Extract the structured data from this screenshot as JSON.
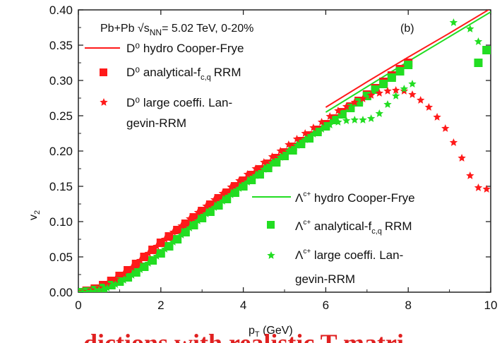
{
  "chart_data": {
    "type": "scatter",
    "header": "Pb+Pb √s",
    "header_sub": "NN",
    "header_rest": "= 5.02 TeV, 0-20%",
    "panel_label": "(b)",
    "xlabel": "p",
    "xlabel_sub": "T",
    "xlabel_rest": " (GeV)",
    "ylabel": "v",
    "ylabel_sub": "2",
    "xlim": [
      0,
      10
    ],
    "ylim": [
      0,
      0.4
    ],
    "x_ticks": [
      "0",
      "2",
      "4",
      "6",
      "8",
      "10"
    ],
    "y_ticks": [
      "0.00",
      "0.05",
      "0.10",
      "0.15",
      "0.20",
      "0.25",
      "0.30",
      "0.35",
      "0.40"
    ],
    "bottom_caption": "dictions with realistic T matri",
    "colors": {
      "D": "#ff1a1a",
      "Lc": "#22dd22"
    },
    "legend_D": [
      {
        "marker": "line",
        "label_lines": [
          "D⁰ hydro Cooper-Frye"
        ]
      },
      {
        "marker": "square",
        "label_lines": [
          "D⁰ analytical-f",
          "RRM"
        ],
        "label_sub": "c,q"
      },
      {
        "marker": "star",
        "label_lines": [
          "D⁰ large coeffi. Lan-",
          "gevin-RRM"
        ]
      }
    ],
    "legend_Lc": [
      {
        "marker": "line",
        "label_lines": [
          "Λ",
          " hydro Cooper-Frye"
        ],
        "label_sup": "c+"
      },
      {
        "marker": "square",
        "label_lines": [
          "Λ",
          " analytical-f",
          "RRM"
        ],
        "label_sup": "c+",
        "label_sub": "c,q"
      },
      {
        "marker": "star",
        "label_lines": [
          "Λ",
          " large coeffi. Lan-",
          "gevin-RRM"
        ],
        "label_sup": "c+"
      }
    ],
    "series": [
      {
        "name": "D⁰ hydro Cooper-Frye",
        "kind": "line",
        "color": "#ff1a1a",
        "x": [
          6.0,
          7.0,
          8.0,
          9.0,
          10.0
        ],
        "y": [
          0.262,
          0.298,
          0.333,
          0.367,
          0.402
        ]
      },
      {
        "name": "Λc+ hydro Cooper-Frye",
        "kind": "line",
        "color": "#22dd22",
        "x": [
          6.0,
          7.0,
          8.0,
          9.0,
          10.0
        ],
        "y": [
          0.255,
          0.291,
          0.327,
          0.362,
          0.397
        ]
      },
      {
        "name": "D⁰ analytical-fc,q RRM",
        "kind": "square",
        "color": "#ff1a1a",
        "x": [
          0.0,
          0.2,
          0.4,
          0.6,
          0.8,
          1.0,
          1.2,
          1.4,
          1.6,
          1.8,
          2.0,
          2.2,
          2.4,
          2.6,
          2.8,
          3.0,
          3.2,
          3.4,
          3.6,
          3.8,
          4.0,
          4.2,
          4.4,
          4.6,
          4.8,
          5.0,
          5.2,
          5.4,
          5.6,
          5.8,
          6.0,
          6.2,
          6.4,
          6.6,
          6.8,
          7.0,
          7.2,
          7.4,
          7.6,
          7.8,
          8.0
        ],
        "y": [
          0.0,
          0.002,
          0.005,
          0.01,
          0.016,
          0.023,
          0.031,
          0.04,
          0.05,
          0.06,
          0.07,
          0.079,
          0.088,
          0.097,
          0.106,
          0.115,
          0.124,
          0.133,
          0.141,
          0.15,
          0.158,
          0.166,
          0.174,
          0.182,
          0.19,
          0.198,
          0.206,
          0.214,
          0.222,
          0.23,
          0.238,
          0.246,
          0.255,
          0.263,
          0.271,
          0.28,
          0.289,
          0.298,
          0.307,
          0.316,
          0.325
        ]
      },
      {
        "name": "Λc+ analytical-fc,q RRM",
        "kind": "square",
        "color": "#22dd22",
        "x": [
          0.0,
          0.2,
          0.4,
          0.6,
          0.8,
          1.0,
          1.2,
          1.4,
          1.6,
          1.8,
          2.0,
          2.2,
          2.4,
          2.6,
          2.8,
          3.0,
          3.2,
          3.4,
          3.6,
          3.8,
          4.0,
          4.2,
          4.4,
          4.6,
          4.8,
          5.0,
          5.2,
          5.4,
          5.6,
          5.8,
          6.0,
          6.2,
          6.4,
          6.6,
          6.8,
          7.0,
          7.2,
          7.4,
          7.6,
          7.8,
          8.0
        ],
        "y": [
          0.0,
          0.001,
          0.003,
          0.006,
          0.01,
          0.015,
          0.021,
          0.028,
          0.036,
          0.045,
          0.055,
          0.065,
          0.075,
          0.085,
          0.095,
          0.105,
          0.114,
          0.123,
          0.132,
          0.141,
          0.15,
          0.159,
          0.167,
          0.176,
          0.184,
          0.193,
          0.201,
          0.21,
          0.218,
          0.227,
          0.235,
          0.244,
          0.252,
          0.261,
          0.269,
          0.278,
          0.287,
          0.295,
          0.304,
          0.313,
          0.322
        ]
      },
      {
        "name": "D⁰ large coeffi. Langevin-RRM",
        "kind": "star",
        "color": "#ff1a1a",
        "x": [
          0.1,
          0.3,
          0.5,
          0.7,
          0.9,
          1.1,
          1.3,
          1.5,
          1.7,
          1.9,
          2.1,
          2.3,
          2.5,
          2.7,
          2.9,
          3.1,
          3.3,
          3.5,
          3.7,
          3.9,
          4.1,
          4.3,
          4.5,
          4.7,
          4.9,
          5.1,
          5.3,
          5.5,
          5.7,
          5.9,
          6.1,
          6.3,
          6.5,
          6.7,
          6.9,
          7.1,
          7.3,
          7.5,
          7.7,
          7.9,
          8.1,
          8.3,
          8.5,
          8.7,
          8.9,
          9.1,
          9.3,
          9.5,
          9.7,
          9.9
        ],
        "y": [
          0.001,
          0.003,
          0.006,
          0.011,
          0.018,
          0.026,
          0.035,
          0.045,
          0.055,
          0.065,
          0.075,
          0.085,
          0.094,
          0.104,
          0.113,
          0.122,
          0.131,
          0.14,
          0.149,
          0.158,
          0.167,
          0.175,
          0.184,
          0.192,
          0.2,
          0.209,
          0.217,
          0.225,
          0.233,
          0.241,
          0.249,
          0.257,
          0.263,
          0.269,
          0.274,
          0.279,
          0.282,
          0.285,
          0.286,
          0.285,
          0.28,
          0.272,
          0.262,
          0.248,
          0.232,
          0.212,
          0.19,
          0.165,
          0.148,
          0.146
        ]
      },
      {
        "name": "Λc+ large coeffi. Langevin-RRM",
        "kind": "star",
        "color": "#22dd22",
        "x": [
          0.1,
          0.3,
          0.5,
          0.7,
          0.9,
          1.1,
          1.3,
          1.5,
          1.7,
          1.9,
          2.1,
          2.3,
          2.5,
          2.7,
          2.9,
          3.1,
          3.3,
          3.5,
          3.7,
          3.9,
          4.1,
          4.3,
          4.5,
          4.7,
          4.9,
          5.1,
          5.3,
          5.5,
          5.7,
          5.9,
          6.1,
          6.3,
          6.5,
          6.7,
          6.9,
          7.1,
          7.3,
          7.5,
          7.7,
          7.9,
          8.1,
          9.1,
          9.5,
          9.7
        ],
        "y": [
          0.0,
          0.001,
          0.003,
          0.006,
          0.011,
          0.017,
          0.024,
          0.032,
          0.041,
          0.051,
          0.061,
          0.071,
          0.081,
          0.091,
          0.101,
          0.111,
          0.12,
          0.129,
          0.138,
          0.147,
          0.156,
          0.165,
          0.174,
          0.183,
          0.191,
          0.2,
          0.208,
          0.216,
          0.224,
          0.231,
          0.237,
          0.241,
          0.243,
          0.244,
          0.244,
          0.246,
          0.253,
          0.266,
          0.278,
          0.288,
          0.295,
          0.382,
          0.373,
          0.355
        ]
      },
      {
        "name": "Λc+ analytical-fc,q RRM (tail)",
        "kind": "square",
        "color": "#22dd22",
        "x": [
          9.7,
          9.9
        ],
        "y": [
          0.325,
          0.343
        ]
      }
    ]
  }
}
